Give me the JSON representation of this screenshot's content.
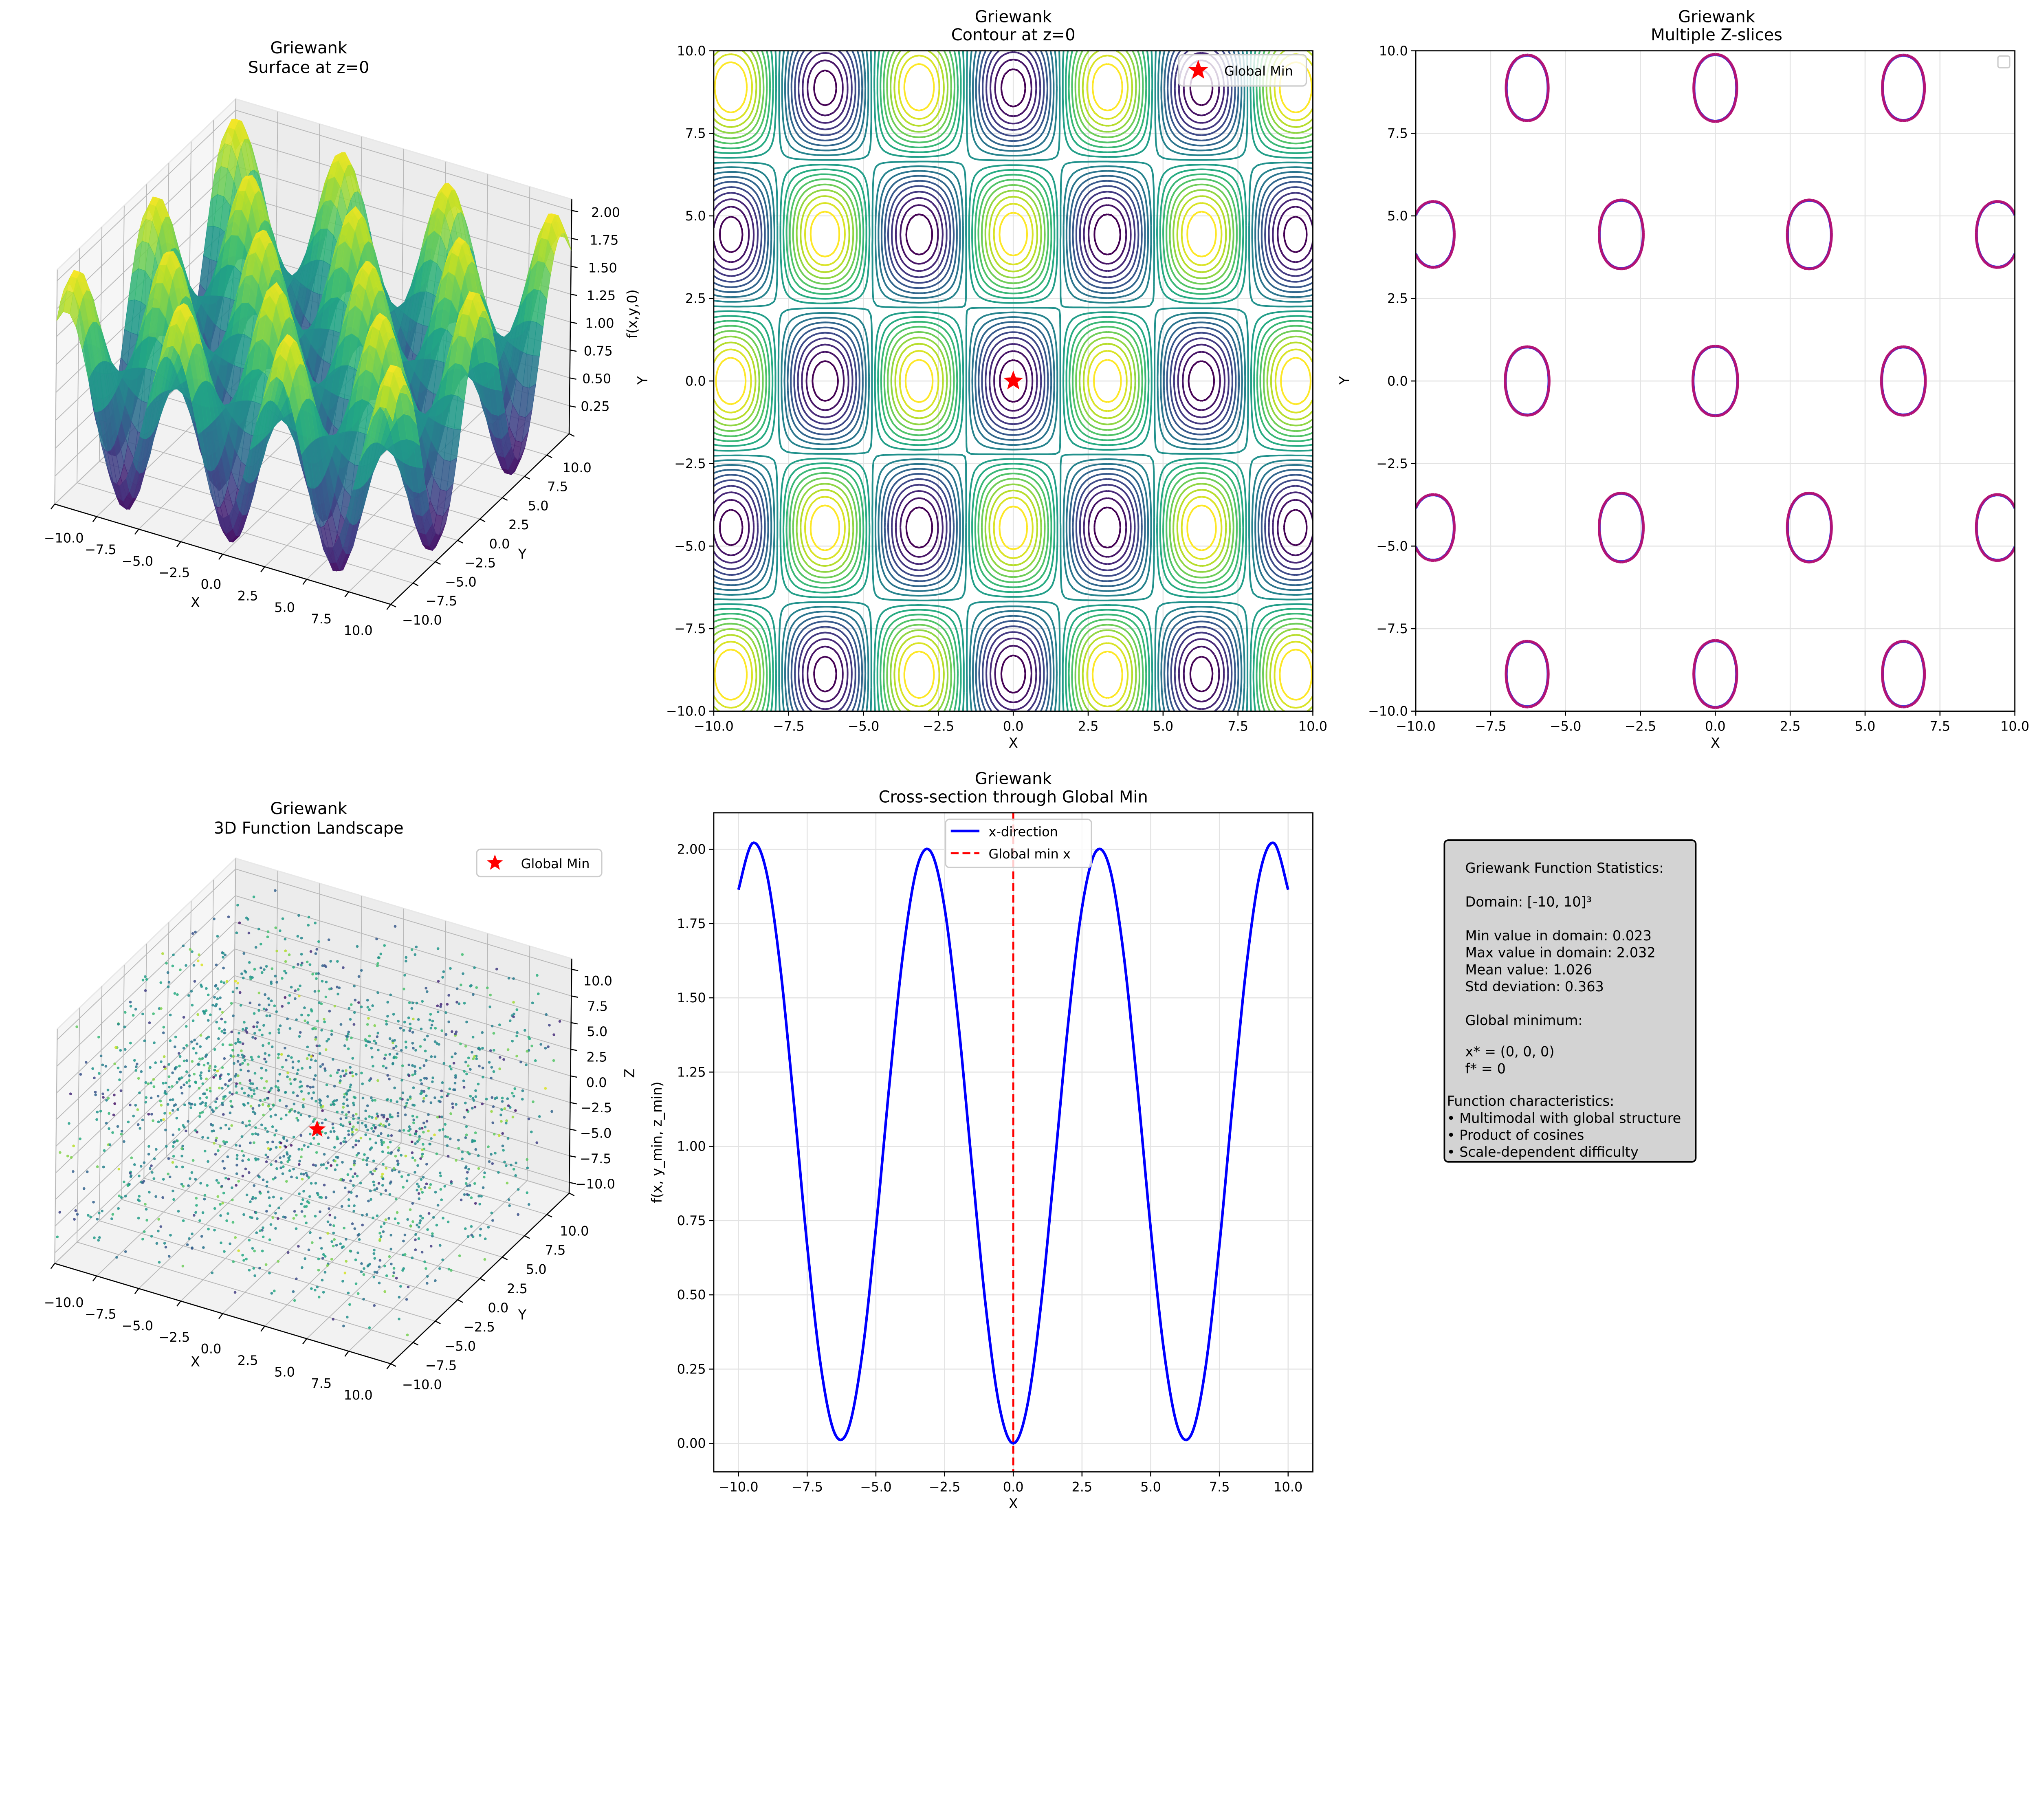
{
  "chart_data": [
    {
      "type": "surface",
      "title": [
        "Griewank",
        "Surface at z=0"
      ],
      "xlabel": "X",
      "ylabel": "Y",
      "zlabel": "f(x,y,0)",
      "xlim": [
        -10,
        10
      ],
      "ylim": [
        -10,
        10
      ],
      "zlim": [
        0,
        2.1
      ],
      "xticks": [
        "−10.0",
        "−7.5",
        "−5.0",
        "−2.5",
        "0.0",
        "2.5",
        "5.0",
        "7.5",
        "10.0"
      ],
      "yticks": [
        "−10.0",
        "−7.5",
        "−5.0",
        "−2.5",
        "0.0",
        "2.5",
        "5.0",
        "7.5",
        "10.0"
      ],
      "zticks": [
        "0.25",
        "0.50",
        "0.75",
        "1.00",
        "1.25",
        "1.50",
        "1.75",
        "2.00"
      ],
      "colormap": "viridis",
      "grid": true
    },
    {
      "type": "contour",
      "title": [
        "Griewank",
        "Contour at z=0"
      ],
      "xlabel": "X",
      "ylabel": "Y",
      "xlim": [
        -10,
        10
      ],
      "ylim": [
        -10,
        10
      ],
      "xticks": [
        "−10.0",
        "−7.5",
        "−5.0",
        "−2.5",
        "0.0",
        "2.5",
        "5.0",
        "7.5",
        "10.0"
      ],
      "yticks": [
        "−10.0",
        "−7.5",
        "−5.0",
        "−2.5",
        "0.0",
        "2.5",
        "5.0",
        "7.5",
        "10.0"
      ],
      "levels": [
        0.1,
        0.2,
        0.3,
        0.4,
        0.5,
        0.6,
        0.7,
        0.8,
        0.9,
        1.0,
        1.1,
        1.2,
        1.3,
        1.4,
        1.5,
        1.6,
        1.7,
        1.8,
        1.9
      ],
      "colormap": "viridis",
      "marker": {
        "label": "Global Min",
        "x": 0,
        "y": 0,
        "color": "#ff0000",
        "symbol": "star"
      },
      "legend": "top-right",
      "grid": true
    },
    {
      "type": "contour",
      "title": [
        "Griewank",
        "Multiple Z-slices"
      ],
      "xlabel": "X",
      "ylabel": "Y",
      "xlim": [
        -10,
        10
      ],
      "ylim": [
        -10,
        10
      ],
      "xticks": [
        "−10.0",
        "−7.5",
        "−5.0",
        "−2.5",
        "0.0",
        "2.5",
        "5.0",
        "7.5",
        "10.0"
      ],
      "yticks": [
        "−10.0",
        "−7.5",
        "−5.0",
        "−2.5",
        "0.0",
        "2.5",
        "5.0",
        "7.5",
        "10.0"
      ],
      "level": 0.27,
      "series_colors": [
        "#2020e0",
        "#6a1fb0",
        "#c0106a"
      ],
      "legend": "top-right (empty)",
      "grid": true
    },
    {
      "type": "scatter3d",
      "title": [
        "Griewank",
        "3D Function Landscape"
      ],
      "xlabel": "X",
      "ylabel": "Y",
      "zlabel": "Z",
      "xlim": [
        -10,
        10
      ],
      "ylim": [
        -10,
        10
      ],
      "zlim": [
        -11,
        11
      ],
      "xticks": [
        "−10.0",
        "−7.5",
        "−5.0",
        "−2.5",
        "0.0",
        "2.5",
        "5.0",
        "7.5",
        "10.0"
      ],
      "yticks": [
        "−10.0",
        "−7.5",
        "−5.0",
        "−2.5",
        "0.0",
        "2.5",
        "5.0",
        "7.5",
        "10.0"
      ],
      "zticks": [
        "−10.0",
        "−7.5",
        "−5.0",
        "−2.5",
        "0.0",
        "2.5",
        "5.0",
        "7.5",
        "10.0"
      ],
      "colormap": "viridis",
      "marker": {
        "label": "Global Min",
        "x": 0,
        "y": 0,
        "z": 0,
        "color": "#ff0000",
        "symbol": "star"
      },
      "legend": "top-right",
      "grid": true
    },
    {
      "type": "line",
      "title": [
        "Griewank",
        "Cross-section through Global Min"
      ],
      "xlabel": "X",
      "ylabel": "f(x, y_min, z_min)",
      "xlim": [
        -10.9,
        10.9
      ],
      "ylim": [
        -0.096,
        2.123
      ],
      "xticks": [
        "−10.0",
        "−7.5",
        "−5.0",
        "−2.5",
        "0.0",
        "2.5",
        "5.0",
        "7.5",
        "10.0"
      ],
      "yticks": [
        "0.00",
        "0.25",
        "0.50",
        "0.75",
        "1.00",
        "1.25",
        "1.50",
        "1.75",
        "2.00"
      ],
      "x": [
        -10,
        -9.5,
        -9,
        -8.5,
        -8,
        -7.5,
        -7,
        -6.5,
        -6,
        -5.5,
        -5,
        -4.5,
        -4,
        -3.5,
        -3,
        -2.5,
        -2,
        -1.5,
        -1,
        -0.5,
        0,
        0.5,
        1,
        1.5,
        2,
        2.5,
        3,
        3.5,
        4,
        4.5,
        5,
        5.5,
        6,
        6.5,
        7,
        7.5,
        8,
        8.5,
        9,
        9.5,
        10
      ],
      "series": [
        {
          "name": "x-direction",
          "color": "#0000ff",
          "values": [
            1.864,
            2.02,
            1.931,
            1.62,
            1.162,
            0.667,
            0.258,
            0.034,
            0.049,
            0.299,
            0.723,
            1.216,
            1.658,
            1.94,
            1.992,
            1.803,
            1.417,
            0.93,
            0.46,
            0.122,
            0.0,
            0.122,
            0.46,
            0.93,
            1.417,
            1.803,
            1.992,
            1.94,
            1.658,
            1.216,
            0.723,
            0.299,
            0.049,
            0.034,
            0.258,
            0.667,
            1.162,
            1.62,
            1.931,
            2.02,
            1.864
          ]
        }
      ],
      "vline": {
        "name": "Global min x",
        "x": 0,
        "color": "#ff0000",
        "style": "dashed"
      },
      "legend": "top-center",
      "grid": true
    }
  ],
  "stats_box": {
    "lines": [
      "Griewank Function Statistics:",
      "Domain: [-10, 10]³",
      "Min value in domain: 0.023",
      "Max value in domain: 2.032",
      "Mean value: 1.026",
      "Std deviation: 0.363",
      "Global minimum:",
      "x* = (0, 0, 0)",
      "f* = 0",
      "Function characteristics:",
      "• Multimodal with global structure",
      "• Product of cosines",
      "• Scale-dependent difficulty"
    ],
    "background": "#d3d3d3"
  }
}
